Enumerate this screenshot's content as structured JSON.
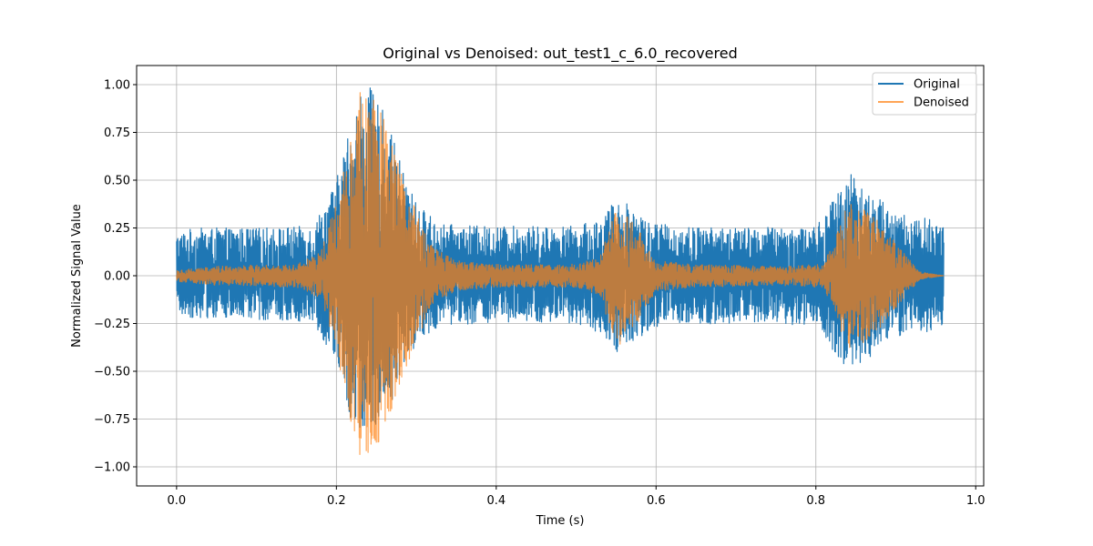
{
  "chart_data": {
    "type": "line",
    "title": "Original vs Denoised: out_test1_c_6.0_recovered",
    "xlabel": "Time (s)",
    "ylabel": "Normalized Signal Value",
    "xlim": [
      -0.05,
      1.01
    ],
    "ylim": [
      -1.1,
      1.1
    ],
    "x_ticks": [
      0.0,
      0.2,
      0.4,
      0.6,
      0.8,
      1.0
    ],
    "x_tick_labels": [
      "0.0",
      "0.2",
      "0.4",
      "0.6",
      "0.8",
      "1.0"
    ],
    "y_ticks": [
      1.0,
      0.75,
      0.5,
      0.25,
      0.0,
      -0.25,
      -0.5,
      -0.75,
      -1.0
    ],
    "y_tick_labels": [
      "1.00",
      "0.75",
      "0.50",
      "0.25",
      "0.00",
      "−0.25",
      "−0.50",
      "−0.75",
      "−1.00"
    ],
    "grid": true,
    "legend_position": "top-right",
    "x_range_data": [
      0.0,
      0.96
    ],
    "series": [
      {
        "name": "Original",
        "color": "#1f77b4",
        "envelope": {
          "t": [
            0.0,
            0.02,
            0.1,
            0.17,
            0.2,
            0.22,
            0.23,
            0.24,
            0.26,
            0.28,
            0.3,
            0.33,
            0.38,
            0.5,
            0.53,
            0.55,
            0.57,
            0.59,
            0.62,
            0.7,
            0.8,
            0.83,
            0.85,
            0.86,
            0.88,
            0.91,
            0.94,
            0.96
          ],
          "upper": [
            0.22,
            0.25,
            0.25,
            0.26,
            0.5,
            0.85,
            0.98,
            1.0,
            0.85,
            0.6,
            0.38,
            0.27,
            0.26,
            0.26,
            0.3,
            0.4,
            0.38,
            0.29,
            0.26,
            0.25,
            0.26,
            0.45,
            0.6,
            0.45,
            0.4,
            0.32,
            0.3,
            0.28
          ],
          "lower": [
            -0.2,
            -0.22,
            -0.23,
            -0.24,
            -0.45,
            -0.8,
            -0.85,
            -0.8,
            -0.75,
            -0.55,
            -0.35,
            -0.26,
            -0.25,
            -0.25,
            -0.3,
            -0.4,
            -0.35,
            -0.29,
            -0.26,
            -0.25,
            -0.26,
            -0.45,
            -0.5,
            -0.45,
            -0.4,
            -0.3,
            -0.3,
            -0.28
          ]
        }
      },
      {
        "name": "Denoised",
        "color": "#ff7f0e",
        "envelope": {
          "t": [
            0.0,
            0.05,
            0.15,
            0.18,
            0.2,
            0.22,
            0.23,
            0.25,
            0.27,
            0.29,
            0.32,
            0.35,
            0.4,
            0.5,
            0.53,
            0.55,
            0.57,
            0.6,
            0.65,
            0.75,
            0.81,
            0.84,
            0.86,
            0.88,
            0.91,
            0.93,
            0.96
          ],
          "upper": [
            0.03,
            0.05,
            0.06,
            0.12,
            0.4,
            0.85,
            1.0,
            0.95,
            0.7,
            0.45,
            0.15,
            0.08,
            0.06,
            0.06,
            0.1,
            0.35,
            0.3,
            0.08,
            0.06,
            0.05,
            0.06,
            0.38,
            0.35,
            0.28,
            0.12,
            0.02,
            0.0
          ],
          "lower": [
            -0.03,
            -0.05,
            -0.06,
            -0.12,
            -0.4,
            -0.8,
            -0.95,
            -0.9,
            -0.7,
            -0.45,
            -0.15,
            -0.08,
            -0.06,
            -0.06,
            -0.1,
            -0.38,
            -0.3,
            -0.08,
            -0.06,
            -0.05,
            -0.06,
            -0.38,
            -0.35,
            -0.28,
            -0.12,
            -0.02,
            0.0
          ]
        }
      }
    ]
  }
}
